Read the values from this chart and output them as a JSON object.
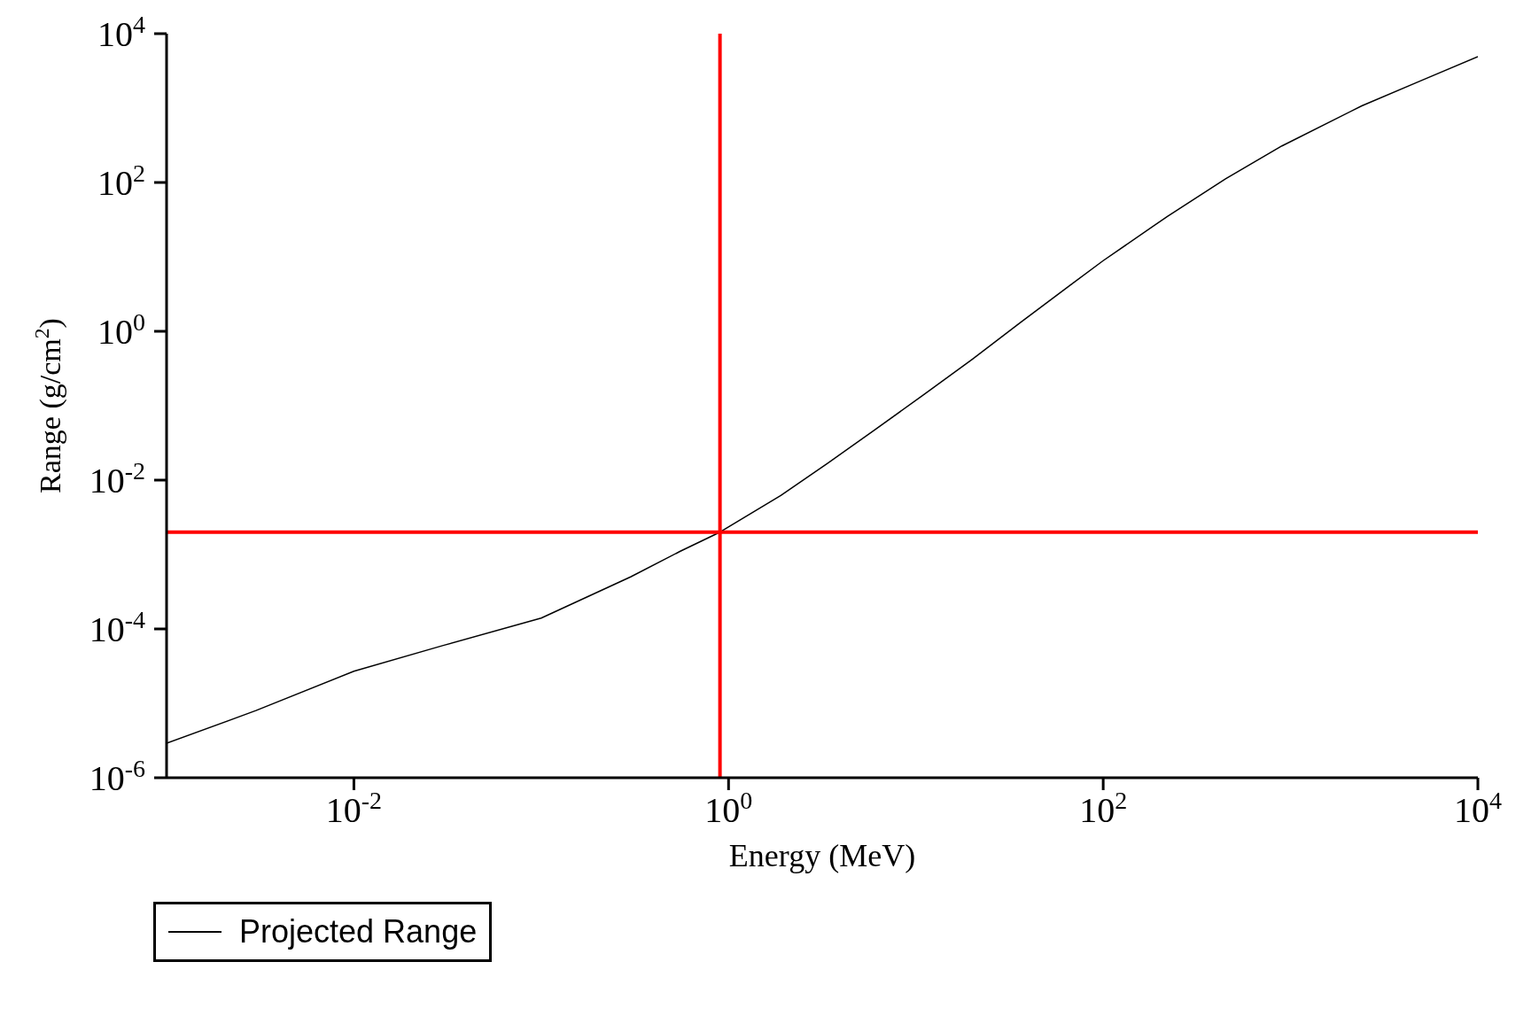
{
  "chart_data": {
    "type": "line",
    "xlabel": "Energy (MeV)",
    "ylabel": "Range (g/cm$^{2}$)",
    "log": "xy",
    "grid": false,
    "legend": "bottom left",
    "marker": "none",
    "line_style": "solid",
    "xlim": [
      0.001,
      10000
    ],
    "ylim": [
      1e-06,
      10000
    ],
    "xticks": [
      {
        "value": 0.01,
        "label": "10$^{-2}$"
      },
      {
        "value": 1,
        "label": "10$^{0}$"
      },
      {
        "value": 100,
        "label": "10$^{2}$"
      },
      {
        "value": 10000,
        "label": "10$^{4}$"
      }
    ],
    "yticks": [
      {
        "value": 1e-06,
        "label": "10$^{-6}$"
      },
      {
        "value": 0.0001,
        "label": "10$^{-4}$"
      },
      {
        "value": 0.01,
        "label": "10$^{-2}$"
      },
      {
        "value": 1,
        "label": "10$^{0}$"
      },
      {
        "value": 100,
        "label": "10$^{2}$"
      },
      {
        "value": 10000,
        "label": "10$^{4}$"
      }
    ],
    "x": [
      0.001,
      0.003,
      0.01,
      0.03,
      0.1,
      0.3,
      0.55,
      0.9,
      1.9,
      3.4,
      6,
      11,
      20,
      36,
      66,
      100,
      220,
      450,
      900,
      2400,
      4900,
      10000
    ],
    "series": [
      {
        "name": "Projected Range",
        "color": "#000000",
        "values": [
          2.9e-06,
          8e-06,
          2.7e-05,
          6e-05,
          0.00014,
          0.0005,
          0.0011,
          0.002,
          0.0062,
          0.017,
          0.047,
          0.14,
          0.42,
          1.3,
          4.1,
          8.9,
          35,
          112,
          310,
          1070,
          2300,
          4900
        ]
      }
    ],
    "ref_lines": [
      {
        "axis": "x",
        "value": 0.9,
        "color": "#ff0000"
      },
      {
        "axis": "y",
        "value": 0.002,
        "color": "#ff0000"
      }
    ]
  }
}
